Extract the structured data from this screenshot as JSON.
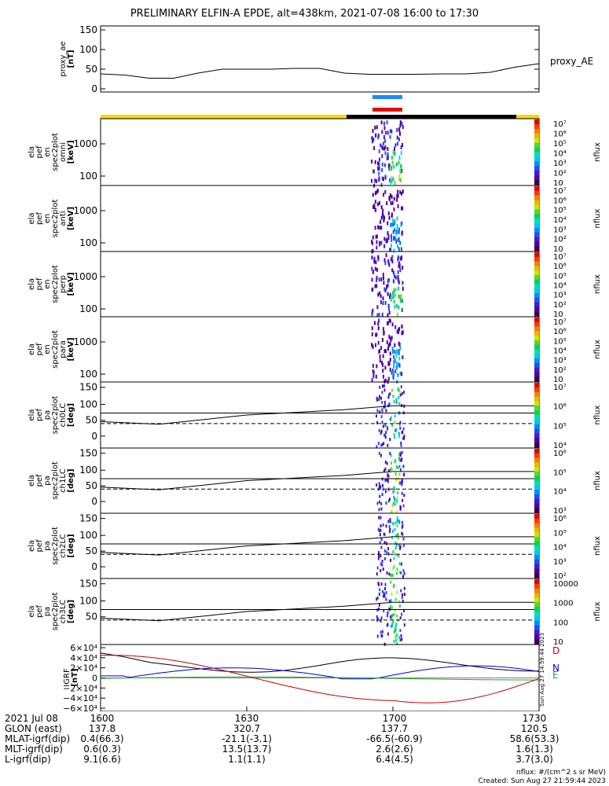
{
  "title": "PRELIMINARY ELFIN-A EPDE, alt=438km, 2021-07-08 16:00 to 17:30",
  "colors": {
    "bar_yellow": "#f5d90a",
    "bar_black": "#000000",
    "bar_blue": "#1a8cff",
    "bar_red": "#e01010",
    "mag_n": "#0000cc",
    "mag_e": "#22aa22",
    "mag_d": "#cc0000"
  },
  "chart_data": [
    {
      "type": "line",
      "panel": "proxy_ae",
      "ylabel": "proxy_ae\n[nT]",
      "legend": "proxy_AE",
      "yticks": [
        "150",
        "100",
        "50",
        "0"
      ],
      "x_minutes": [
        0,
        5,
        10,
        15,
        20,
        25,
        30,
        35,
        40,
        45,
        50,
        55,
        60,
        65,
        70,
        75,
        80,
        85,
        90
      ],
      "values": [
        38,
        35,
        27,
        27,
        40,
        50,
        50,
        50,
        52,
        52,
        40,
        37,
        37,
        37,
        38,
        38,
        42,
        55,
        64
      ]
    },
    {
      "panel": "spec2plot_omni",
      "type": "heatmap",
      "ylabel": "ela\npef\nen\nspec2plot\nomni\n[keV]",
      "yticks": [
        "1000",
        "100"
      ],
      "cbar": "nflux",
      "cbar_ticks": [
        "10⁷",
        "10⁶",
        "10⁵",
        "10⁴",
        "10³",
        "10²",
        "10"
      ]
    },
    {
      "panel": "spec2plot_anti",
      "type": "heatmap",
      "ylabel": "ela\npef\nen\nspec2plot\nanti\n[keV]",
      "yticks": [
        "1000",
        "100"
      ],
      "cbar": "nflux",
      "cbar_ticks": [
        "10⁷",
        "10⁶",
        "10⁵",
        "10⁴",
        "10³",
        "10²",
        "10"
      ]
    },
    {
      "panel": "spec2plot_perp",
      "type": "heatmap",
      "ylabel": "ela\npef\nen\nspec2plot\nperp\n[keV]",
      "yticks": [
        "1000",
        "100"
      ],
      "cbar": "nflux",
      "cbar_ticks": [
        "10⁷",
        "10⁶",
        "10⁵",
        "10⁴",
        "10³",
        "10²",
        "10"
      ]
    },
    {
      "panel": "spec2plot_para",
      "type": "heatmap",
      "ylabel": "ela\npef\nen\nspec2plot\npara\n[keV]",
      "yticks": [
        "1000",
        "100"
      ],
      "cbar": "nflux",
      "cbar_ticks": [
        "10⁷",
        "10⁶",
        "10⁵",
        "10⁴",
        "10³",
        "10²",
        "10"
      ]
    },
    {
      "panel": "spec2plot_ch0LC",
      "type": "heatmap",
      "ylabel": "ela\npef\npa\nspec2plot\nch0LC\n[deg]",
      "yticks": [
        "150",
        "100",
        "50",
        "0"
      ],
      "cbar": "nflux",
      "cbar_ticks": [
        "10⁷",
        "10⁶",
        "10⁵",
        "10⁴"
      ]
    },
    {
      "panel": "spec2plot_ch1LC",
      "type": "heatmap",
      "ylabel": "ela\npef\npa\nspec2plot\nch1LC\n[deg]",
      "yticks": [
        "150",
        "100",
        "50",
        "0"
      ],
      "cbar": "nflux",
      "cbar_ticks": [
        "10⁶",
        "10⁵",
        "10⁴",
        "10³"
      ]
    },
    {
      "panel": "spec2plot_ch2LC",
      "type": "heatmap",
      "ylabel": "ela\npef\npa\nspec2plot\nch2LC\n[deg]",
      "yticks": [
        "150",
        "100",
        "50",
        "0"
      ],
      "cbar": "nflux",
      "cbar_ticks": [
        "10⁶",
        "10⁵",
        "10⁴",
        "10³",
        "10²"
      ]
    },
    {
      "panel": "spec2plot_ch3LC",
      "type": "heatmap",
      "ylabel": "ela\npef\npa\nspec2plot\nch3LC\n[deg]",
      "yticks": [
        "150",
        "100",
        "50"
      ],
      "cbar": "nflux",
      "cbar_ticks": [
        "10000",
        "1000",
        "100",
        "10"
      ]
    },
    {
      "panel": "igrf",
      "type": "line",
      "ylabel": "IGRF\n[nT]",
      "yticks": [
        "6×10⁴",
        "4×10⁴",
        "2×10⁴",
        "0",
        "−2×10⁴",
        "−4×10⁴",
        "−6×10⁴"
      ],
      "legend": [
        "D",
        "N",
        "E"
      ]
    }
  ],
  "footer": {
    "labels": [
      "2021 Jul 08",
      "GLON (east)",
      "MLAT-igrf(dip)",
      "MLT-igrf(dip)",
      "L-igrf(dip)"
    ],
    "columns": [
      {
        "time": "1600",
        "vals": [
          "137.8",
          "0.4(66.3)",
          "0.6(0.3)",
          "9.1(6.6)"
        ]
      },
      {
        "time": "1630",
        "vals": [
          "320.7",
          "-21.1(-3.1)",
          "13.5(13.7)",
          "1.1(1.1)"
        ]
      },
      {
        "time": "1700",
        "vals": [
          "137.7",
          "-66.5(-60.9)",
          "2.6(2.6)",
          "6.4(4.5)"
        ]
      },
      {
        "time": "1730",
        "vals": [
          "120.5",
          "58.6(53.3)",
          "1.6(1.3)",
          "3.7(3.0)"
        ]
      }
    ],
    "note1": "nflux: #/(cm^2 s sr MeV)",
    "note2": "Created: Sun Aug 27 21:59:44 2023",
    "side": "Sun Aug 27 14:59:44 2023"
  }
}
